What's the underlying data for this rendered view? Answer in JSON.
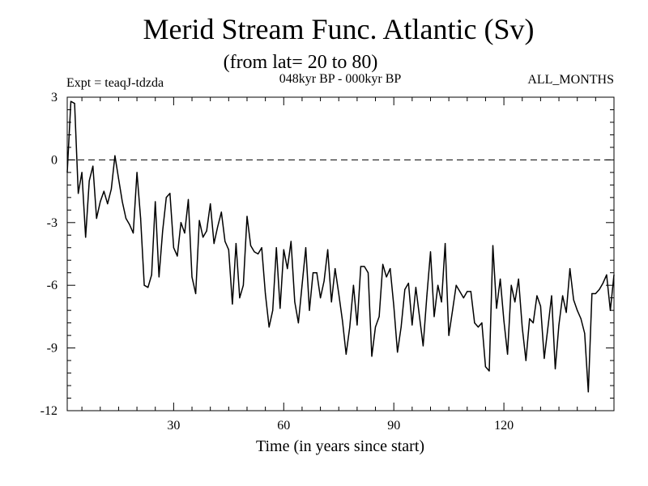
{
  "chart_data": {
    "type": "line",
    "title": "Merid Stream Func. Atlantic (Sv)",
    "subtitle": "(from lat= 20 to 80)",
    "experiment_label": "Expt = teaqJ-tdzda",
    "period_label": "048kyr BP - 000kyr BP",
    "months_label": "ALL_MONTHS",
    "xlabel": "Time (in years since start)",
    "ylabel": "",
    "xlim": [
      1,
      150
    ],
    "ylim": [
      -12,
      3
    ],
    "x_ticks": [
      30,
      60,
      90,
      120
    ],
    "y_ticks": [
      3,
      0,
      -3,
      -6,
      -9,
      -12
    ],
    "reference_line": {
      "y": 0,
      "style": "dashed"
    },
    "line_color": "#000000",
    "series": [
      {
        "name": "Atlantic meridional stream function",
        "x_start": 1,
        "x_step": 1,
        "values": [
          -0.6,
          2.8,
          2.7,
          -1.6,
          -0.6,
          -3.7,
          -1.0,
          -0.3,
          -2.8,
          -2.0,
          -1.5,
          -2.1,
          -1.4,
          0.2,
          -0.9,
          -2.0,
          -2.8,
          -3.1,
          -3.5,
          -0.6,
          -2.8,
          -6.0,
          -6.1,
          -5.5,
          -2.0,
          -5.6,
          -3.4,
          -1.8,
          -1.6,
          -4.2,
          -4.6,
          -3.0,
          -3.5,
          -1.9,
          -5.6,
          -6.4,
          -2.9,
          -3.7,
          -3.4,
          -2.1,
          -4.0,
          -3.2,
          -2.5,
          -3.9,
          -4.3,
          -6.9,
          -4.0,
          -6.6,
          -6.0,
          -2.7,
          -4.1,
          -4.4,
          -4.5,
          -4.2,
          -6.4,
          -8.0,
          -7.2,
          -4.2,
          -7.1,
          -4.3,
          -5.2,
          -3.9,
          -6.8,
          -7.8,
          -6.0,
          -4.2,
          -7.2,
          -5.4,
          -5.4,
          -6.6,
          -5.8,
          -4.3,
          -6.8,
          -5.2,
          -6.4,
          -7.7,
          -9.3,
          -8.0,
          -6.0,
          -7.9,
          -5.1,
          -5.1,
          -5.4,
          -9.4,
          -8.0,
          -7.5,
          -5.0,
          -5.6,
          -5.2,
          -7.0,
          -9.2,
          -8.0,
          -6.2,
          -5.9,
          -7.9,
          -6.1,
          -7.5,
          -8.9,
          -6.5,
          -4.4,
          -7.5,
          -6.0,
          -6.8,
          -4.0,
          -8.4,
          -7.2,
          -6.0,
          -6.3,
          -6.6,
          -6.3,
          -6.3,
          -7.8,
          -8.0,
          -7.8,
          -9.9,
          -10.1,
          -4.1,
          -7.1,
          -5.7,
          -7.7,
          -9.3,
          -6.0,
          -6.8,
          -5.7,
          -8.0,
          -9.6,
          -7.6,
          -7.8,
          -6.5,
          -7.0,
          -9.5,
          -8.0,
          -6.5,
          -10.0,
          -7.9,
          -6.5,
          -7.3,
          -5.2,
          -6.7,
          -7.2,
          -7.6,
          -8.3,
          -11.1,
          -6.4,
          -6.4,
          -6.2,
          -5.9,
          -5.5,
          -7.2,
          -5.5
        ]
      }
    ]
  }
}
